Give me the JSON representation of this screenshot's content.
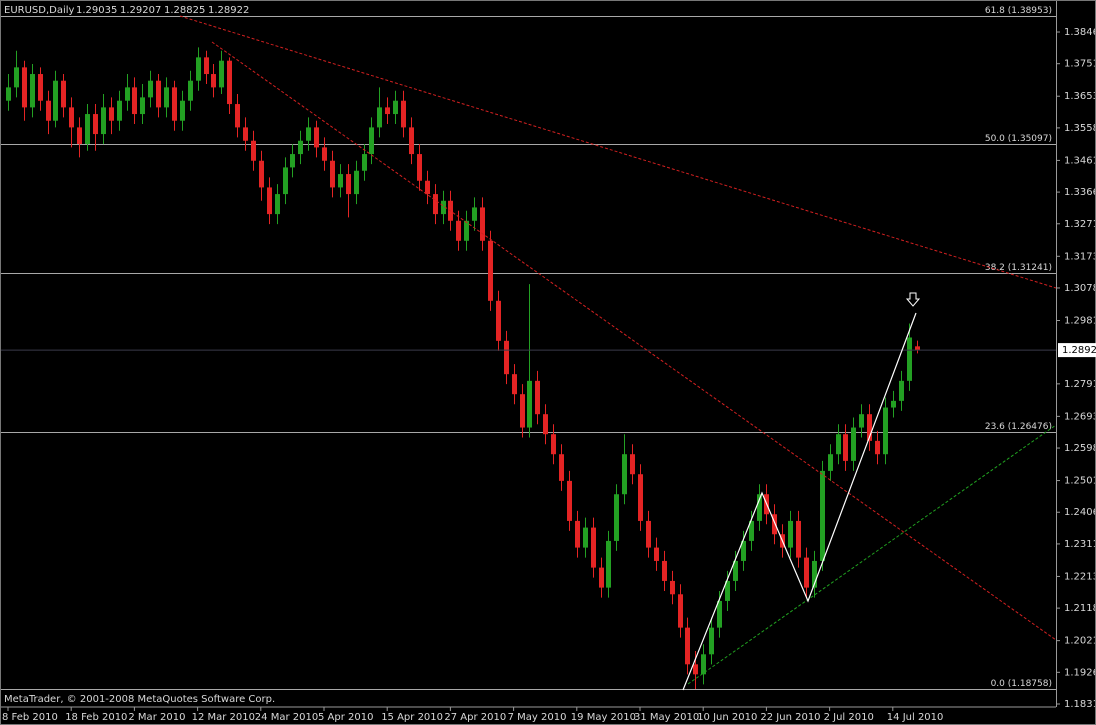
{
  "chart_data": {
    "type": "candlestick",
    "symbol": "EURUSD,Daily",
    "watermark": "MetaTrader, © 2001-2008 MetaQuotes Software Corp.",
    "up_color": "#23a023",
    "down_color": "#e42424",
    "ylim": [
      1.1828,
      1.3942
    ],
    "yticks": [
      {
        "value": 1.3846,
        "label": "1.38460"
      },
      {
        "value": 1.3751,
        "label": "1.37510"
      },
      {
        "value": 1.36535,
        "label": "1.36535"
      },
      {
        "value": 1.35585,
        "label": "1.35585"
      },
      {
        "value": 1.3461,
        "label": "1.34610"
      },
      {
        "value": 1.3366,
        "label": "1.33660"
      },
      {
        "value": 1.3271,
        "label": "1.32710"
      },
      {
        "value": 1.31735,
        "label": "1.31735"
      },
      {
        "value": 1.30785,
        "label": "1.30785"
      },
      {
        "value": 1.2981,
        "label": "1.29810"
      },
      {
        "value": 1.2791,
        "label": "1.27910"
      },
      {
        "value": 1.26935,
        "label": "1.26935"
      },
      {
        "value": 1.25985,
        "label": "1.25985"
      },
      {
        "value": 1.2501,
        "label": "1.25010"
      },
      {
        "value": 1.2406,
        "label": "1.24060"
      },
      {
        "value": 1.2311,
        "label": "1.23110"
      },
      {
        "value": 1.22135,
        "label": "1.22135"
      },
      {
        "value": 1.21185,
        "label": "1.21185"
      },
      {
        "value": 1.2021,
        "label": "1.20210"
      },
      {
        "value": 1.1926,
        "label": "1.19260"
      },
      {
        "value": 1.1831,
        "label": "1.18310"
      }
    ],
    "fib_levels": [
      {
        "value": 1.38953,
        "label": "61.8 (1.38953)"
      },
      {
        "value": 1.35097,
        "label": "50.0 (1.35097)"
      },
      {
        "value": 1.31241,
        "label": "38.2 (1.31241)"
      },
      {
        "value": 1.26476,
        "label": "23.6 (1.26476)"
      },
      {
        "value": 1.18758,
        "label": "0.0 (1.18758)"
      }
    ],
    "categories": [
      "8 Feb 2010",
      null,
      null,
      null,
      null,
      null,
      null,
      null,
      "18 Feb 2010",
      null,
      null,
      null,
      null,
      null,
      null,
      null,
      "2 Mar 2010",
      null,
      null,
      null,
      null,
      null,
      null,
      null,
      "12 Mar 2010",
      null,
      null,
      null,
      null,
      null,
      null,
      null,
      "24 Mar 2010",
      null,
      null,
      null,
      null,
      null,
      null,
      null,
      "5 Apr 2010",
      null,
      null,
      null,
      null,
      null,
      null,
      null,
      "15 Apr 2010",
      null,
      null,
      null,
      null,
      null,
      null,
      null,
      "27 Apr 2010",
      null,
      null,
      null,
      null,
      null,
      null,
      null,
      "7 May 2010",
      null,
      null,
      null,
      null,
      null,
      null,
      null,
      "19 May 2010",
      null,
      null,
      null,
      null,
      null,
      null,
      null,
      "31 May 2010",
      null,
      null,
      null,
      null,
      null,
      null,
      null,
      "10 Jun 2010",
      null,
      null,
      null,
      null,
      null,
      null,
      null,
      "22 Jun 2010",
      null,
      null,
      null,
      null,
      null,
      null,
      null,
      "2 Jul 2010",
      null,
      null,
      null,
      null,
      null,
      null,
      null,
      "14 Jul 2010",
      null,
      null,
      null
    ],
    "ohlc": [
      [
        1.364,
        1.372,
        1.361,
        1.368
      ],
      [
        1.368,
        1.379,
        1.365,
        1.374
      ],
      [
        1.374,
        1.376,
        1.358,
        1.362
      ],
      [
        1.362,
        1.375,
        1.359,
        1.372
      ],
      [
        1.372,
        1.374,
        1.361,
        1.364
      ],
      [
        1.364,
        1.367,
        1.354,
        1.358
      ],
      [
        1.358,
        1.373,
        1.356,
        1.37
      ],
      [
        1.37,
        1.372,
        1.359,
        1.362
      ],
      [
        1.362,
        1.365,
        1.35,
        1.356
      ],
      [
        1.356,
        1.359,
        1.347,
        1.351
      ],
      [
        1.351,
        1.363,
        1.349,
        1.36
      ],
      [
        1.36,
        1.363,
        1.349,
        1.354
      ],
      [
        1.354,
        1.366,
        1.351,
        1.362
      ],
      [
        1.362,
        1.365,
        1.354,
        1.358
      ],
      [
        1.358,
        1.367,
        1.355,
        1.364
      ],
      [
        1.364,
        1.372,
        1.361,
        1.368
      ],
      [
        1.368,
        1.371,
        1.357,
        1.36
      ],
      [
        1.36,
        1.369,
        1.357,
        1.365
      ],
      [
        1.365,
        1.373,
        1.362,
        1.37
      ],
      [
        1.37,
        1.372,
        1.359,
        1.362
      ],
      [
        1.362,
        1.371,
        1.359,
        1.368
      ],
      [
        1.368,
        1.37,
        1.355,
        1.358
      ],
      [
        1.358,
        1.367,
        1.355,
        1.364
      ],
      [
        1.364,
        1.373,
        1.361,
        1.37
      ],
      [
        1.37,
        1.38,
        1.367,
        1.377
      ],
      [
        1.377,
        1.379,
        1.369,
        1.372
      ],
      [
        1.372,
        1.375,
        1.365,
        1.368
      ],
      [
        1.368,
        1.379,
        1.366,
        1.376
      ],
      [
        1.376,
        1.377,
        1.36,
        1.363
      ],
      [
        1.363,
        1.366,
        1.353,
        1.356
      ],
      [
        1.356,
        1.359,
        1.349,
        1.352
      ],
      [
        1.352,
        1.355,
        1.343,
        1.346
      ],
      [
        1.346,
        1.349,
        1.334,
        1.338
      ],
      [
        1.338,
        1.341,
        1.327,
        1.33
      ],
      [
        1.33,
        1.339,
        1.327,
        1.336
      ],
      [
        1.336,
        1.347,
        1.333,
        1.344
      ],
      [
        1.344,
        1.351,
        1.341,
        1.348
      ],
      [
        1.348,
        1.355,
        1.345,
        1.352
      ],
      [
        1.352,
        1.359,
        1.349,
        1.356
      ],
      [
        1.356,
        1.358,
        1.347,
        1.35
      ],
      [
        1.35,
        1.353,
        1.343,
        1.346
      ],
      [
        1.346,
        1.349,
        1.335,
        1.338
      ],
      [
        1.338,
        1.345,
        1.335,
        1.342
      ],
      [
        1.342,
        1.345,
        1.329,
        1.336
      ],
      [
        1.336,
        1.346,
        1.333,
        1.343
      ],
      [
        1.343,
        1.351,
        1.34,
        1.348
      ],
      [
        1.348,
        1.359,
        1.345,
        1.356
      ],
      [
        1.356,
        1.368,
        1.353,
        1.362
      ],
      [
        1.362,
        1.365,
        1.357,
        1.36
      ],
      [
        1.36,
        1.367,
        1.357,
        1.364
      ],
      [
        1.364,
        1.367,
        1.353,
        1.356
      ],
      [
        1.356,
        1.359,
        1.345,
        1.348
      ],
      [
        1.348,
        1.351,
        1.337,
        1.34
      ],
      [
        1.34,
        1.343,
        1.333,
        1.336
      ],
      [
        1.336,
        1.339,
        1.327,
        1.33
      ],
      [
        1.33,
        1.337,
        1.327,
        1.334
      ],
      [
        1.334,
        1.337,
        1.325,
        1.328
      ],
      [
        1.328,
        1.331,
        1.319,
        1.322
      ],
      [
        1.322,
        1.331,
        1.319,
        1.328
      ],
      [
        1.328,
        1.335,
        1.325,
        1.332
      ],
      [
        1.332,
        1.335,
        1.319,
        1.322
      ],
      [
        1.322,
        1.325,
        1.301,
        1.304
      ],
      [
        1.304,
        1.307,
        1.289,
        1.292
      ],
      [
        1.292,
        1.295,
        1.279,
        1.282
      ],
      [
        1.282,
        1.285,
        1.273,
        1.276
      ],
      [
        1.276,
        1.279,
        1.263,
        1.266
      ],
      [
        1.266,
        1.309,
        1.263,
        1.28
      ],
      [
        1.28,
        1.283,
        1.267,
        1.27
      ],
      [
        1.27,
        1.273,
        1.261,
        1.264
      ],
      [
        1.264,
        1.267,
        1.255,
        1.258
      ],
      [
        1.258,
        1.261,
        1.247,
        1.25
      ],
      [
        1.25,
        1.253,
        1.235,
        1.238
      ],
      [
        1.238,
        1.241,
        1.227,
        1.23
      ],
      [
        1.23,
        1.239,
        1.227,
        1.236
      ],
      [
        1.236,
        1.239,
        1.221,
        1.224
      ],
      [
        1.224,
        1.227,
        1.215,
        1.218
      ],
      [
        1.218,
        1.235,
        1.215,
        1.232
      ],
      [
        1.232,
        1.249,
        1.229,
        1.246
      ],
      [
        1.246,
        1.264,
        1.243,
        1.258
      ],
      [
        1.258,
        1.261,
        1.249,
        1.252
      ],
      [
        1.252,
        1.255,
        1.235,
        1.238
      ],
      [
        1.238,
        1.241,
        1.227,
        1.23
      ],
      [
        1.23,
        1.233,
        1.223,
        1.226
      ],
      [
        1.226,
        1.229,
        1.217,
        1.22
      ],
      [
        1.22,
        1.223,
        1.213,
        1.216
      ],
      [
        1.216,
        1.219,
        1.203,
        1.206
      ],
      [
        1.206,
        1.209,
        1.192,
        1.195
      ],
      [
        1.195,
        1.199,
        1.1876,
        1.192
      ],
      [
        1.192,
        1.201,
        1.189,
        1.198
      ],
      [
        1.198,
        1.209,
        1.195,
        1.206
      ],
      [
        1.206,
        1.217,
        1.203,
        1.214
      ],
      [
        1.214,
        1.223,
        1.211,
        1.22
      ],
      [
        1.22,
        1.229,
        1.217,
        1.226
      ],
      [
        1.226,
        1.235,
        1.223,
        1.232
      ],
      [
        1.232,
        1.241,
        1.229,
        1.238
      ],
      [
        1.238,
        1.249,
        1.235,
        1.246
      ],
      [
        1.246,
        1.249,
        1.237,
        1.24
      ],
      [
        1.24,
        1.243,
        1.231,
        1.234
      ],
      [
        1.234,
        1.237,
        1.227,
        1.23
      ],
      [
        1.23,
        1.241,
        1.227,
        1.238
      ],
      [
        1.238,
        1.241,
        1.224,
        1.227
      ],
      [
        1.227,
        1.23,
        1.215,
        1.218
      ],
      [
        1.218,
        1.229,
        1.215,
        1.226
      ],
      [
        1.226,
        1.256,
        1.223,
        1.253
      ],
      [
        1.253,
        1.261,
        1.25,
        1.258
      ],
      [
        1.258,
        1.267,
        1.255,
        1.264
      ],
      [
        1.264,
        1.267,
        1.253,
        1.256
      ],
      [
        1.256,
        1.269,
        1.253,
        1.266
      ],
      [
        1.266,
        1.273,
        1.263,
        1.27
      ],
      [
        1.27,
        1.273,
        1.259,
        1.262
      ],
      [
        1.262,
        1.265,
        1.255,
        1.258
      ],
      [
        1.258,
        1.275,
        1.255,
        1.272
      ],
      [
        1.272,
        1.277,
        1.269,
        1.274
      ],
      [
        1.274,
        1.283,
        1.271,
        1.28
      ],
      [
        1.28,
        1.2972,
        1.277,
        1.293
      ],
      [
        1.29035,
        1.29207,
        1.28825,
        1.28922
      ]
    ]
  }
}
